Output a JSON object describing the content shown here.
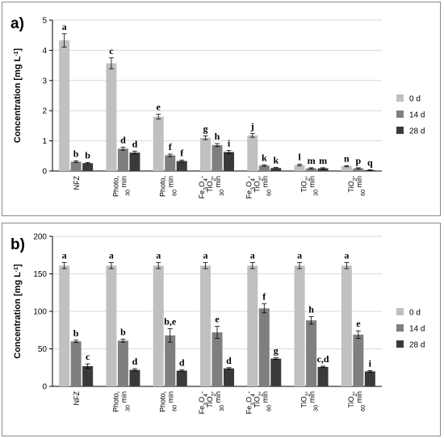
{
  "colors": {
    "0 d": "#c0c0c0",
    "14 d": "#7f7f7f",
    "28 d": "#3a3a3a"
  },
  "chart_data": [
    {
      "type": "bar",
      "panel": "a)",
      "ylabel": "Concentration [mg L",
      "ylabel_sup": "-1",
      "ylabel_close": "]",
      "ylim": [
        0,
        5
      ],
      "yticks": [
        0,
        1,
        2,
        3,
        4,
        5
      ],
      "grid": true,
      "legend_position": "right",
      "categories": [
        [
          "NFZ"
        ],
        [
          "Photo,",
          "30 min"
        ],
        [
          "Photo,",
          "60 min"
        ],
        [
          "Fe3O4-",
          "TiO2,",
          "30 min"
        ],
        [
          "Fe3O4-",
          "TiO2,",
          "60 min"
        ],
        [
          "TiO2,",
          "30 min"
        ],
        [
          "TiO2,",
          "60 min"
        ]
      ],
      "series": [
        {
          "name": "0 d",
          "values": [
            4.33,
            3.57,
            1.8,
            1.1,
            1.18,
            0.2,
            0.16
          ],
          "errors": [
            0.22,
            0.18,
            0.08,
            0.06,
            0.06,
            0.03,
            0.02
          ]
        },
        {
          "name": "14 d",
          "values": [
            0.31,
            0.74,
            0.52,
            0.86,
            0.18,
            0.09,
            0.09
          ],
          "errors": [
            0.03,
            0.05,
            0.04,
            0.05,
            0.02,
            0.02,
            0.02
          ]
        },
        {
          "name": "28 d",
          "values": [
            0.26,
            0.61,
            0.33,
            0.63,
            0.1,
            0.09,
            0.03
          ],
          "errors": [
            0.02,
            0.05,
            0.03,
            0.05,
            0.02,
            0.02,
            0.01
          ]
        }
      ],
      "letters": [
        [
          "a",
          "b",
          "b"
        ],
        [
          "c",
          "d",
          "d"
        ],
        [
          "e",
          "f",
          "f"
        ],
        [
          "g",
          "h",
          "i"
        ],
        [
          "j",
          "k",
          "k"
        ],
        [
          "l",
          "m",
          "m"
        ],
        [
          "n",
          "p",
          "q"
        ]
      ]
    },
    {
      "type": "bar",
      "panel": "b)",
      "ylabel": "Concentration [mg L",
      "ylabel_sup": "-1",
      "ylabel_close": "]",
      "ylim": [
        0,
        200
      ],
      "yticks": [
        0,
        50,
        100,
        150,
        200
      ],
      "grid": true,
      "legend_position": "right",
      "categories": [
        [
          "NFZ"
        ],
        [
          "Photo,",
          "30 min"
        ],
        [
          "Photo,",
          "60 min"
        ],
        [
          "Fe3O4-",
          "TiO2,",
          "30 min"
        ],
        [
          "Fe3O4-",
          "TiO2,",
          "60 min"
        ],
        [
          "TiO2,",
          "30 min"
        ],
        [
          "TiO2,",
          "60 min"
        ]
      ],
      "series": [
        {
          "name": "0 d",
          "values": [
            161,
            161,
            161,
            161,
            161,
            161,
            161
          ],
          "errors": [
            4,
            4,
            4,
            4,
            4,
            4,
            4
          ]
        },
        {
          "name": "14 d",
          "values": [
            60,
            61,
            68,
            72,
            104,
            88,
            69
          ],
          "errors": [
            1.5,
            2,
            9,
            8,
            6,
            5,
            5
          ]
        },
        {
          "name": "28 d",
          "values": [
            27,
            22,
            21,
            24,
            37,
            26,
            20
          ],
          "errors": [
            3,
            1.5,
            1,
            1,
            1,
            1,
            1
          ]
        }
      ],
      "letters": [
        [
          "a",
          "b",
          "c"
        ],
        [
          "a",
          "b",
          "d"
        ],
        [
          "a",
          "b,e",
          "d"
        ],
        [
          "a",
          "e",
          "d"
        ],
        [
          "a",
          "f",
          "g"
        ],
        [
          "a",
          "h",
          "c,d"
        ],
        [
          "a",
          "e",
          "i"
        ]
      ]
    }
  ]
}
